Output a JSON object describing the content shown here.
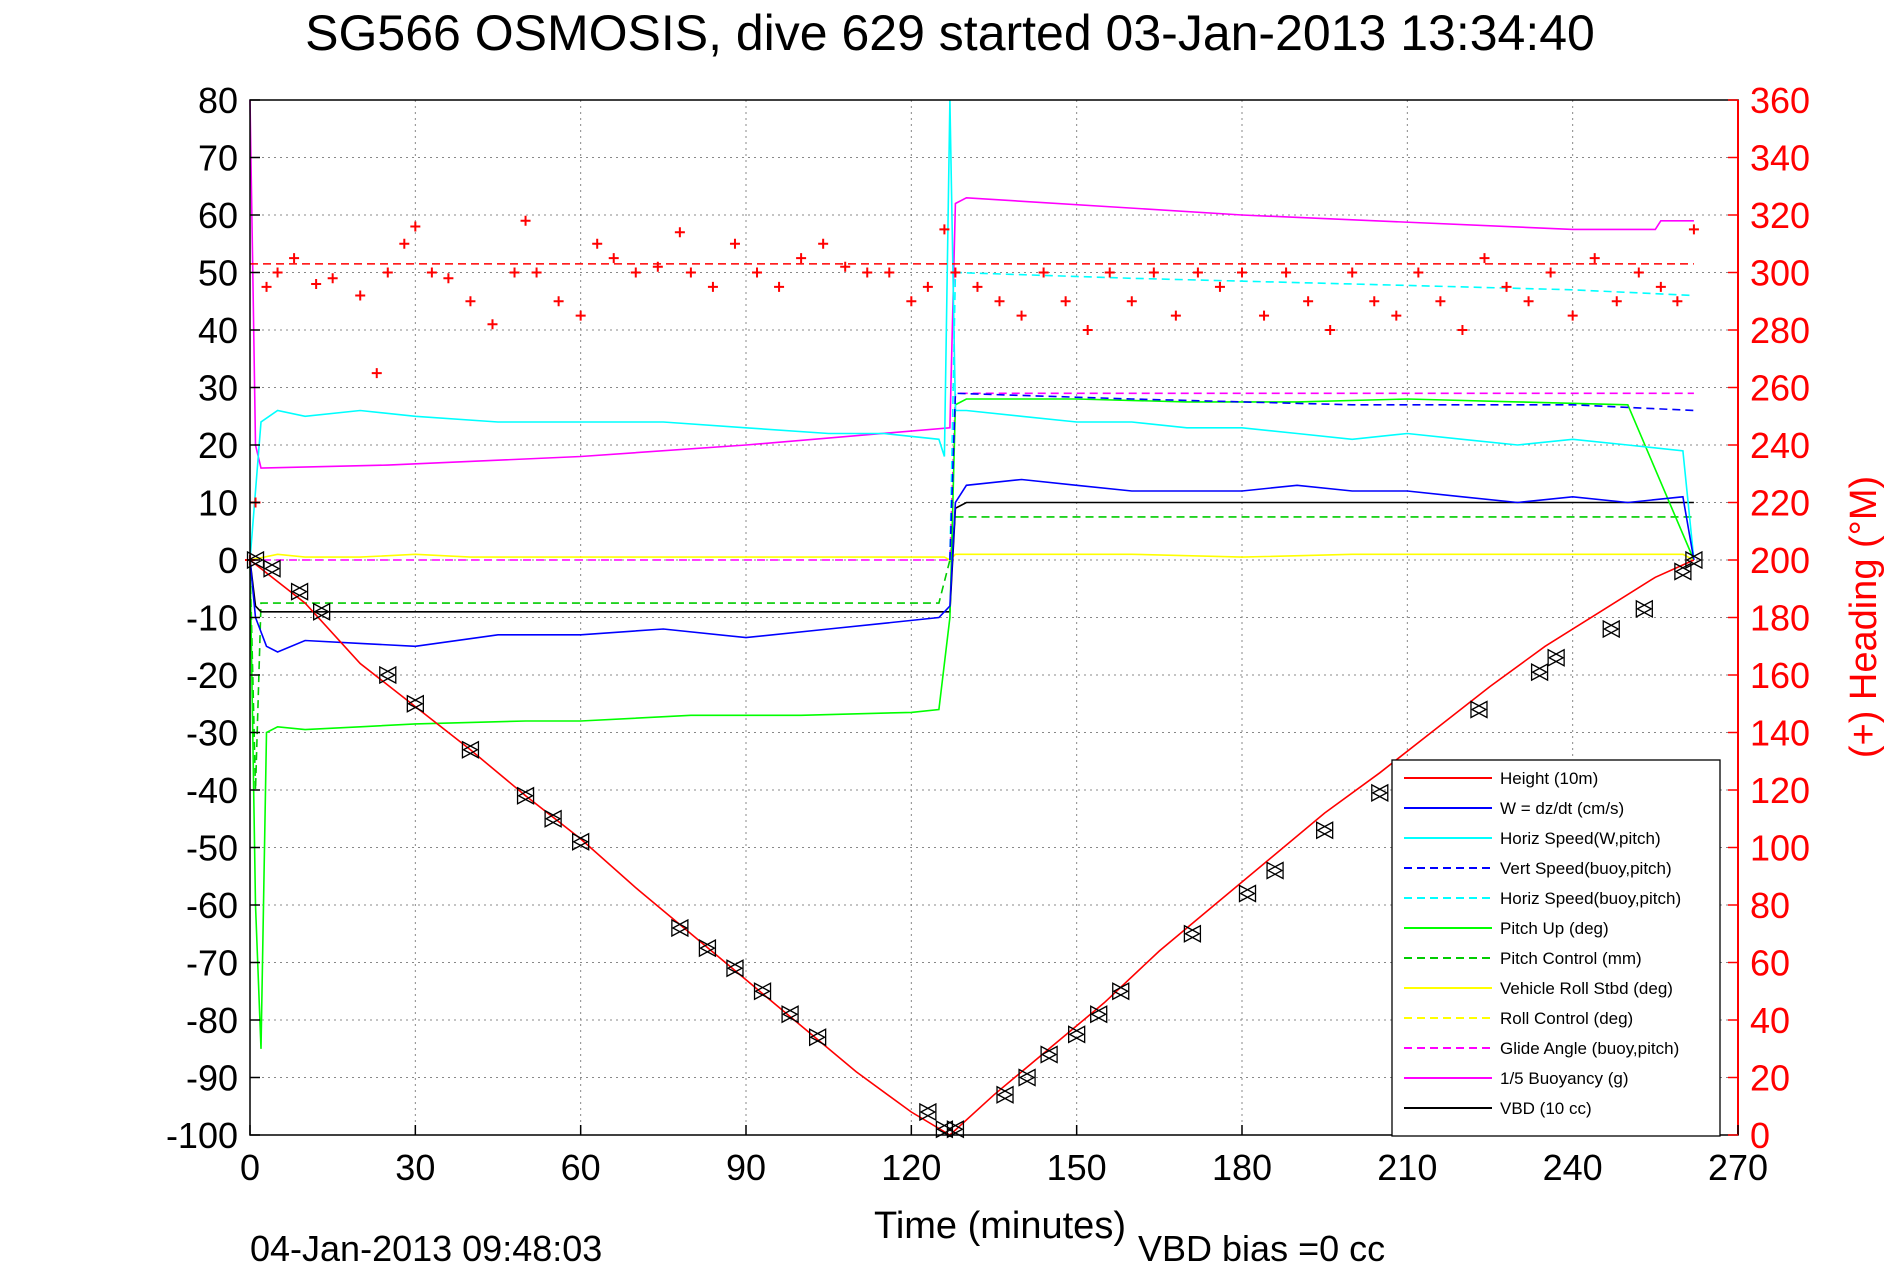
{
  "chart_data": {
    "type": "line",
    "title": "SG566 OSMOSIS, dive 629 started 03-Jan-2013 13:34:40",
    "xlabel": "Time (minutes)",
    "ylabel_right": "(+) Heading (°M)",
    "xlim": [
      0,
      270
    ],
    "ylim": [
      -100,
      80
    ],
    "ylim_right": [
      0,
      360
    ],
    "xticks": [
      0,
      30,
      60,
      90,
      120,
      150,
      180,
      210,
      240,
      270
    ],
    "yticks": [
      -100,
      -90,
      -80,
      -70,
      -60,
      -50,
      -40,
      -30,
      -20,
      -10,
      0,
      10,
      20,
      30,
      40,
      50,
      60,
      70,
      80
    ],
    "yticks_right": [
      0,
      20,
      40,
      60,
      80,
      100,
      120,
      140,
      160,
      180,
      200,
      220,
      240,
      260,
      280,
      300,
      320,
      340,
      360
    ],
    "grid": true,
    "legend_position": "bottom-right",
    "footer_left": "04-Jan-2013 09:48:03",
    "footer_right": "VBD bias =0 cc",
    "colors": {
      "height": "#ff0000",
      "w": "#0000ff",
      "horiz_w": "#00ffff",
      "vert_buoy": "#0000ff",
      "horiz_buoy": "#00ffff",
      "pitch": "#00ff00",
      "pitch_ctl": "#00cc00",
      "roll": "#ffff00",
      "roll_ctl": "#ffff00",
      "glide": "#ff00ff",
      "buoy": "#ff00ff",
      "vbd": "#000000",
      "heading": "#ff0000",
      "right_axis": "#ff0000"
    },
    "series": [
      {
        "name": "Height (10m)",
        "color": "#ff0000",
        "dash": false,
        "x": [
          0,
          10,
          20,
          30,
          40,
          50,
          60,
          70,
          80,
          90,
          100,
          110,
          120,
          127,
          135,
          145,
          155,
          165,
          175,
          185,
          195,
          205,
          215,
          225,
          235,
          245,
          255,
          262
        ],
        "y": [
          0,
          -7.5,
          -18,
          -25.5,
          -33,
          -41,
          -48.5,
          -57,
          -65,
          -73,
          -81,
          -89,
          -96,
          -100,
          -93,
          -85,
          -77,
          -68,
          -60,
          -52,
          -44,
          -37,
          -29.5,
          -22,
          -15,
          -9,
          -3,
          0
        ]
      },
      {
        "name": "W = dz/dt (cm/s)",
        "color": "#0000ff",
        "dash": false,
        "x": [
          0,
          1,
          3,
          5,
          10,
          20,
          30,
          45,
          60,
          75,
          90,
          105,
          115,
          125,
          127,
          128,
          130,
          140,
          150,
          160,
          170,
          180,
          190,
          200,
          210,
          220,
          230,
          240,
          250,
          260,
          262
        ],
        "y": [
          0,
          -10,
          -15,
          -16,
          -14,
          -14.5,
          -15,
          -13,
          -13,
          -12,
          -13.5,
          -12,
          -11,
          -10,
          -8,
          10,
          13,
          14,
          13,
          12,
          12,
          12,
          13,
          12,
          12,
          11,
          10,
          11,
          10,
          11,
          0
        ]
      },
      {
        "name": "Horiz Speed(W,pitch)",
        "color": "#00ffff",
        "dash": false,
        "x": [
          0,
          2,
          5,
          10,
          20,
          30,
          45,
          60,
          75,
          90,
          105,
          115,
          125,
          126,
          127,
          128,
          130,
          140,
          150,
          160,
          170,
          180,
          190,
          200,
          210,
          220,
          230,
          240,
          250,
          260,
          262
        ],
        "y": [
          0,
          24,
          26,
          25,
          26,
          25,
          24,
          24,
          24,
          23,
          22,
          22,
          21,
          18,
          80,
          26,
          26,
          25,
          24,
          24,
          23,
          23,
          22,
          21,
          22,
          21,
          20,
          21,
          20,
          19,
          0
        ]
      },
      {
        "name": "Vert Speed(buoy,pitch)",
        "color": "#0000ff",
        "dash": true,
        "x": [
          127,
          128,
          160,
          200,
          240,
          262
        ],
        "y": [
          0,
          29,
          28,
          27,
          27,
          26
        ]
      },
      {
        "name": "Horiz Speed(buoy,pitch)",
        "color": "#00ffff",
        "dash": true,
        "x": [
          127,
          128,
          160,
          200,
          240,
          262
        ],
        "y": [
          0,
          50,
          49,
          48,
          47,
          46
        ]
      },
      {
        "name": "Pitch Up (deg)",
        "color": "#00ff00",
        "dash": false,
        "x": [
          0,
          1,
          2,
          3,
          5,
          10,
          20,
          30,
          50,
          60,
          80,
          100,
          120,
          125,
          127,
          128,
          130,
          150,
          170,
          190,
          210,
          230,
          250,
          262
        ],
        "y": [
          0,
          -60,
          -85,
          -30,
          -29,
          -29.5,
          -29,
          -28.5,
          -28,
          -28,
          -27,
          -27,
          -26.5,
          -26,
          -10,
          27,
          28,
          28,
          27.5,
          27.5,
          28,
          27.5,
          27,
          0
        ]
      },
      {
        "name": "Pitch Control (mm)",
        "color": "#00cc00",
        "dash": true,
        "x": [
          0,
          1,
          2,
          5,
          60,
          125,
          127,
          128,
          262
        ],
        "y": [
          0,
          -40,
          -7.5,
          -7.5,
          -7.5,
          -7.5,
          0,
          7.5,
          7.5
        ]
      },
      {
        "name": "Vehicle Roll Stbd (deg)",
        "color": "#ffff00",
        "dash": false,
        "x": [
          0,
          5,
          10,
          20,
          30,
          40,
          60,
          80,
          100,
          120,
          126,
          127,
          128,
          140,
          160,
          180,
          200,
          220,
          240,
          260,
          262
        ],
        "y": [
          0,
          1,
          0.5,
          0.5,
          1,
          0.5,
          0.5,
          0.5,
          0.5,
          0.5,
          0.5,
          0,
          1,
          1,
          1,
          0.5,
          1,
          1,
          1,
          1,
          0
        ]
      },
      {
        "name": "Roll Control (deg)",
        "color": "#ffff00",
        "dash": true,
        "x": [
          0,
          126,
          127,
          128,
          262
        ],
        "y": [
          0,
          0,
          0,
          1,
          1
        ]
      },
      {
        "name": "Glide Angle (buoy,pitch)",
        "color": "#ff00ff",
        "dash": true,
        "x": [
          0,
          126,
          127,
          128,
          262
        ],
        "y": [
          0,
          0,
          0,
          29,
          29
        ]
      },
      {
        "name": "1/5 Buoyancy (g)",
        "color": "#ff00ff",
        "dash": false,
        "x": [
          0,
          0.5,
          1,
          2,
          25,
          60,
          90,
          127,
          128,
          130,
          180,
          240,
          255,
          256,
          262
        ],
        "y": [
          80,
          50,
          20,
          16,
          16.5,
          18,
          20,
          23,
          62,
          63,
          60,
          57.5,
          57.5,
          59,
          59
        ]
      },
      {
        "name": "VBD (10 cc)",
        "color": "#000000",
        "dash": false,
        "x": [
          0,
          1,
          2,
          127,
          128,
          130,
          262
        ],
        "y": [
          0,
          -8,
          -9,
          -9,
          9,
          10,
          10
        ]
      }
    ],
    "heading": {
      "name": "Heading",
      "color": "#ff0000",
      "mean_line": 303,
      "x": [
        0,
        1,
        3,
        5,
        8,
        12,
        15,
        20,
        23,
        25,
        28,
        30,
        33,
        36,
        40,
        44,
        48,
        50,
        52,
        56,
        60,
        63,
        66,
        70,
        74,
        78,
        80,
        84,
        88,
        92,
        96,
        100,
        104,
        108,
        112,
        116,
        120,
        123,
        126,
        128,
        132,
        136,
        140,
        144,
        148,
        152,
        156,
        160,
        164,
        168,
        172,
        176,
        180,
        184,
        188,
        192,
        196,
        200,
        204,
        208,
        212,
        216,
        220,
        224,
        228,
        232,
        236,
        240,
        244,
        248,
        252,
        256,
        259,
        262
      ],
      "y": [
        200,
        220,
        295,
        300,
        305,
        296,
        298,
        292,
        265,
        300,
        310,
        316,
        300,
        298,
        290,
        282,
        300,
        318,
        300,
        290,
        285,
        310,
        305,
        300,
        302,
        314,
        300,
        295,
        310,
        300,
        295,
        305,
        310,
        302,
        300,
        300,
        290,
        295,
        315,
        300,
        295,
        290,
        285,
        300,
        290,
        280,
        300,
        290,
        300,
        285,
        300,
        295,
        300,
        285,
        300,
        290,
        280,
        300,
        290,
        285,
        300,
        290,
        280,
        305,
        295,
        290,
        300,
        285,
        305,
        290,
        300,
        295,
        290,
        315
      ]
    },
    "depth_markers": {
      "x": [
        1,
        4,
        9,
        13,
        25,
        30,
        40,
        50,
        55,
        60,
        78,
        83,
        88,
        93,
        98,
        103,
        123,
        126,
        128,
        137,
        141,
        145,
        150,
        154,
        158,
        171,
        181,
        186,
        195,
        205,
        223,
        234,
        237,
        247,
        253,
        260,
        262
      ],
      "y": [
        0,
        -1.5,
        -5.5,
        -9,
        -20,
        -25,
        -33,
        -41,
        -45,
        -49,
        -64,
        -67.5,
        -71,
        -75,
        -79,
        -83,
        -96,
        -99,
        -99,
        -93,
        -90,
        -86,
        -82.5,
        -79,
        -75,
        -65,
        -58,
        -54,
        -47,
        -40.5,
        -26,
        -19.5,
        -17,
        -12,
        -8.5,
        -2,
        0
      ]
    }
  }
}
